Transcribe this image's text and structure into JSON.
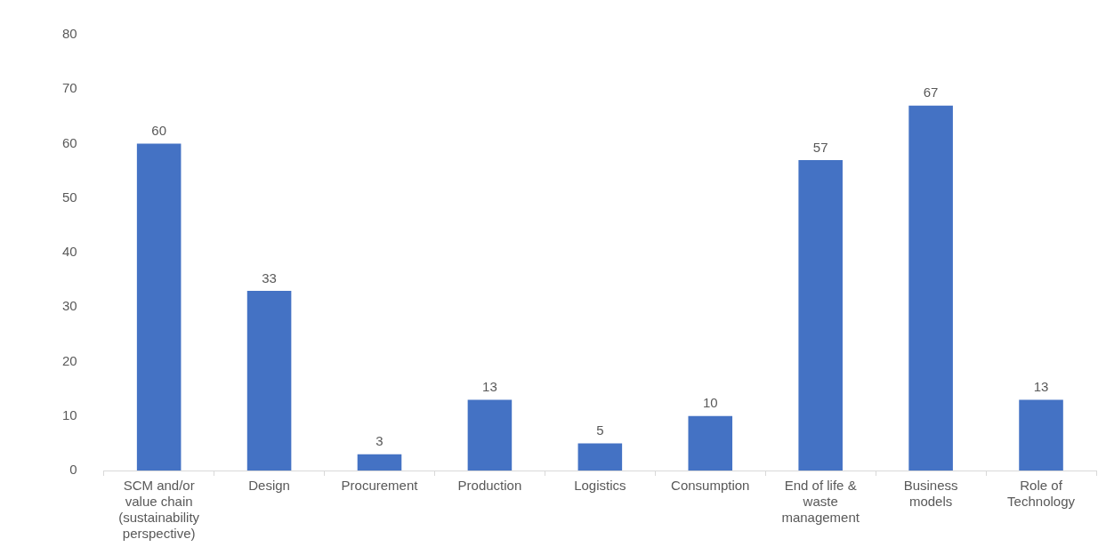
{
  "chart_data": {
    "type": "bar",
    "categories": [
      "SCM and/or value chain (sustainability perspective)",
      "Design",
      "Procurement",
      "Production",
      "Logistics",
      "Consumption",
      "End of life & waste management",
      "Business models",
      "Role of Technology"
    ],
    "values": [
      60,
      33,
      3,
      13,
      5,
      10,
      57,
      67,
      13
    ],
    "color": "#4472c4",
    "ylim": [
      0,
      80
    ],
    "yticks": [
      0,
      10,
      20,
      30,
      40,
      50,
      60,
      70,
      80
    ],
    "grid": false,
    "data_labels": true
  }
}
